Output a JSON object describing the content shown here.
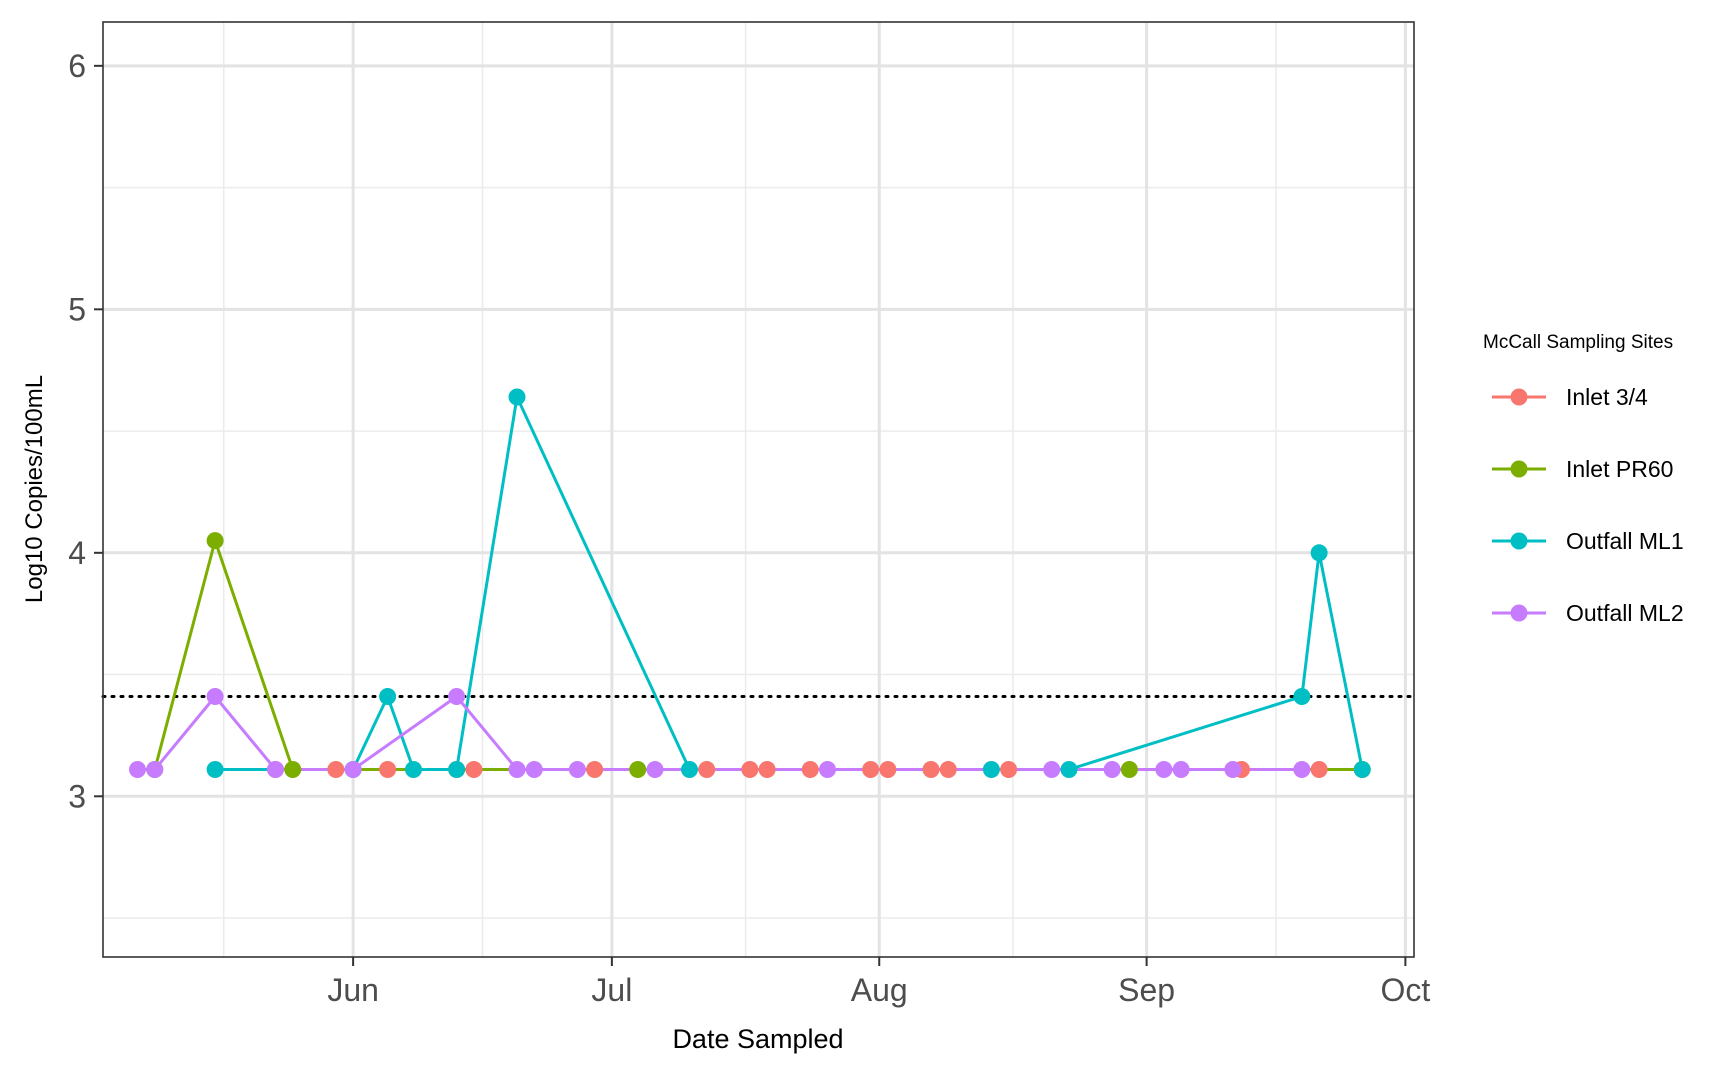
{
  "chart_data": {
    "type": "line",
    "title": "",
    "xlabel": "Date Sampled",
    "ylabel": "Log10 Copies/100mL",
    "x_ticks": [
      {
        "label": "Jun",
        "date": "2023-06-01"
      },
      {
        "label": "Jul",
        "date": "2023-07-01"
      },
      {
        "label": "Aug",
        "date": "2023-08-01"
      },
      {
        "label": "Sep",
        "date": "2023-09-01"
      },
      {
        "label": "Oct",
        "date": "2023-10-01"
      }
    ],
    "xlim": [
      "2023-05-03",
      "2023-10-02"
    ],
    "ylim": [
      2.34,
      6.18
    ],
    "y_ticks": [
      3,
      4,
      5,
      6
    ],
    "grid": true,
    "reference_line": {
      "y": 3.41,
      "style": "dotted"
    },
    "legend": {
      "title": "McCall Sampling Sites",
      "position": "right"
    },
    "series": [
      {
        "name": "Inlet 3/4",
        "color": "#F8766D",
        "points": [
          [
            "2023-05-23",
            3.11
          ],
          [
            "2023-05-30",
            3.11
          ],
          [
            "2023-06-05",
            3.11
          ],
          [
            "2023-06-13",
            3.11
          ],
          [
            "2023-06-15",
            3.11
          ],
          [
            "2023-06-29",
            3.11
          ],
          [
            "2023-07-12",
            3.11
          ],
          [
            "2023-07-17",
            3.11
          ],
          [
            "2023-07-19",
            3.11
          ],
          [
            "2023-07-24",
            3.11
          ],
          [
            "2023-07-31",
            3.11
          ],
          [
            "2023-08-02",
            3.11
          ],
          [
            "2023-08-07",
            3.11
          ],
          [
            "2023-08-09",
            3.11
          ],
          [
            "2023-08-16",
            3.11
          ],
          [
            "2023-09-12",
            3.11
          ],
          [
            "2023-09-21",
            3.11
          ]
        ]
      },
      {
        "name": "Inlet PR60",
        "color": "#7CAE00",
        "points": [
          [
            "2023-05-09",
            3.11
          ],
          [
            "2023-05-16",
            4.05
          ],
          [
            "2023-05-25",
            3.11
          ],
          [
            "2023-07-04",
            3.11
          ],
          [
            "2023-08-30",
            3.11
          ],
          [
            "2023-09-26",
            3.11
          ]
        ]
      },
      {
        "name": "Outfall ML1",
        "color": "#00BFC4",
        "points": [
          [
            "2023-05-16",
            3.11
          ],
          [
            "2023-06-01",
            3.11
          ],
          [
            "2023-06-05",
            3.41
          ],
          [
            "2023-06-08",
            3.11
          ],
          [
            "2023-06-13",
            3.11
          ],
          [
            "2023-06-20",
            4.64
          ],
          [
            "2023-07-10",
            3.11
          ],
          [
            "2023-08-14",
            3.11
          ],
          [
            "2023-08-23",
            3.11
          ],
          [
            "2023-09-19",
            3.41
          ],
          [
            "2023-09-21",
            4.0
          ],
          [
            "2023-09-26",
            3.11
          ]
        ]
      },
      {
        "name": "Outfall ML2",
        "color": "#C77CFF",
        "points": [
          [
            "2023-05-07",
            3.11
          ],
          [
            "2023-05-09",
            3.11
          ],
          [
            "2023-05-16",
            3.41
          ],
          [
            "2023-05-23",
            3.11
          ],
          [
            "2023-06-01",
            3.11
          ],
          [
            "2023-06-13",
            3.41
          ],
          [
            "2023-06-20",
            3.11
          ],
          [
            "2023-06-22",
            3.11
          ],
          [
            "2023-06-27",
            3.11
          ],
          [
            "2023-07-06",
            3.11
          ],
          [
            "2023-07-26",
            3.11
          ],
          [
            "2023-08-21",
            3.11
          ],
          [
            "2023-08-28",
            3.11
          ],
          [
            "2023-09-03",
            3.11
          ],
          [
            "2023-09-05",
            3.11
          ],
          [
            "2023-09-11",
            3.11
          ],
          [
            "2023-09-19",
            3.11
          ]
        ]
      }
    ]
  }
}
